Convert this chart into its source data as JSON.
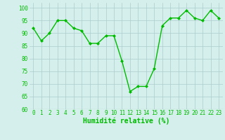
{
  "x": [
    0,
    1,
    2,
    3,
    4,
    5,
    6,
    7,
    8,
    9,
    10,
    11,
    12,
    13,
    14,
    15,
    16,
    17,
    18,
    19,
    20,
    21,
    22,
    23
  ],
  "y": [
    92,
    87,
    90,
    95,
    95,
    92,
    91,
    86,
    86,
    89,
    89,
    79,
    67,
    69,
    69,
    76,
    93,
    96,
    96,
    99,
    96,
    95,
    99,
    96
  ],
  "line_color": "#00bb00",
  "marker": "D",
  "marker_size": 2,
  "background_color": "#d5f0ec",
  "grid_color": "#aacccc",
  "xlabel": "Humidité relative (%)",
  "xlabel_color": "#00bb00",
  "ylim": [
    60,
    102
  ],
  "xlim": [
    -0.5,
    23.5
  ],
  "yticks": [
    60,
    65,
    70,
    75,
    80,
    85,
    90,
    95,
    100
  ],
  "xticks": [
    0,
    1,
    2,
    3,
    4,
    5,
    6,
    7,
    8,
    9,
    10,
    11,
    12,
    13,
    14,
    15,
    16,
    17,
    18,
    19,
    20,
    21,
    22,
    23
  ],
  "tick_label_color": "#00bb00",
  "tick_label_size": 5.5,
  "xlabel_size": 7,
  "linewidth": 1.0
}
